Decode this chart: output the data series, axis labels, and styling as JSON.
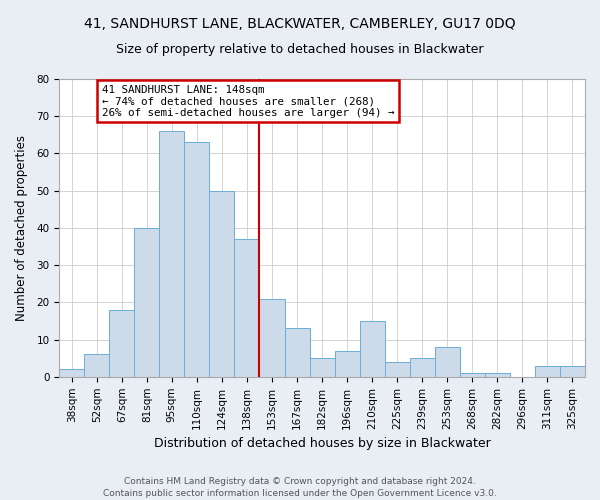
{
  "title": "41, SANDHURST LANE, BLACKWATER, CAMBERLEY, GU17 0DQ",
  "subtitle": "Size of property relative to detached houses in Blackwater",
  "xlabel": "Distribution of detached houses by size in Blackwater",
  "ylabel": "Number of detached properties",
  "footer_line1": "Contains HM Land Registry data © Crown copyright and database right 2024.",
  "footer_line2": "Contains public sector information licensed under the Open Government Licence v3.0.",
  "bin_labels": [
    "38sqm",
    "52sqm",
    "67sqm",
    "81sqm",
    "95sqm",
    "110sqm",
    "124sqm",
    "138sqm",
    "153sqm",
    "167sqm",
    "182sqm",
    "196sqm",
    "210sqm",
    "225sqm",
    "239sqm",
    "253sqm",
    "268sqm",
    "282sqm",
    "296sqm",
    "311sqm",
    "325sqm"
  ],
  "bar_values": [
    2,
    6,
    18,
    40,
    66,
    63,
    50,
    37,
    21,
    13,
    5,
    7,
    15,
    4,
    5,
    8,
    1,
    1,
    0,
    3,
    3
  ],
  "bar_color": "#ccdaea",
  "bar_edge_color": "#6aaed6",
  "annotation_title": "41 SANDHURST LANE: 148sqm",
  "annotation_line2": "← 74% of detached houses are smaller (268)",
  "annotation_line3": "26% of semi-detached houses are larger (94) →",
  "annotation_box_edgecolor": "#cc0000",
  "vline_x": 7.5,
  "vline_color": "#cc0000",
  "ylim": [
    0,
    80
  ],
  "yticks": [
    0,
    10,
    20,
    30,
    40,
    50,
    60,
    70,
    80
  ],
  "fig_background_color": "#e8eef4",
  "plot_background": "#ffffff",
  "grid_color": "#cccccc",
  "title_fontsize": 10,
  "subtitle_fontsize": 9,
  "ylabel_fontsize": 8.5,
  "xlabel_fontsize": 9,
  "tick_fontsize": 7.5,
  "footer_fontsize": 6.5
}
